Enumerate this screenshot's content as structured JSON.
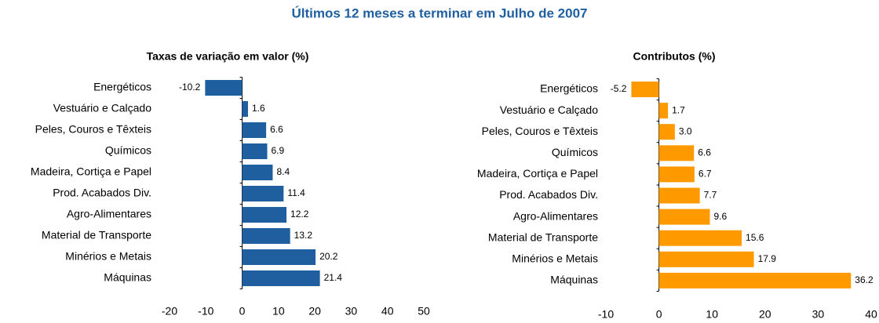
{
  "title": "Últimos 12 meses a terminar em Julho de 2007",
  "chart_data": [
    {
      "type": "bar",
      "orientation": "horizontal",
      "title": "Taxas de variação em valor (%)",
      "categories": [
        "Energéticos",
        "Vestuário e Calçado",
        "Peles, Couros e Têxteis",
        "Químicos",
        "Madeira, Cortiça e Papel",
        "Prod. Acabados Div.",
        "Agro-Alimentares",
        "Material de Transporte",
        "Minérios e Metais",
        "Máquinas"
      ],
      "values": [
        -10.2,
        1.6,
        6.6,
        6.9,
        8.4,
        11.4,
        12.2,
        13.2,
        20.2,
        21.4
      ],
      "value_labels": [
        "-10.2",
        "1.6",
        "6.6",
        "6.9",
        "8.4",
        "11.4",
        "12.2",
        "13.2",
        "20.2",
        "21.4"
      ],
      "color": "#1f5fa0",
      "xlim": [
        -20,
        50
      ],
      "xticks": [
        -20,
        -10,
        0,
        10,
        20,
        30,
        40,
        50
      ]
    },
    {
      "type": "bar",
      "orientation": "horizontal",
      "title": "Contributos (%)",
      "categories": [
        "Energéticos",
        "Vestuário e Calçado",
        "Peles, Couros e Têxteis",
        "Químicos",
        "Madeira, Cortiça e Papel",
        "Prod. Acabados Div.",
        "Agro-Alimentares",
        "Material de Transporte",
        "Minérios e Metais",
        "Máquinas"
      ],
      "values": [
        -5.2,
        1.7,
        3.0,
        6.6,
        6.7,
        7.7,
        9.6,
        15.6,
        17.9,
        36.2
      ],
      "value_labels": [
        "-5.2",
        "1.7",
        "3.0",
        "6.6",
        "6.7",
        "7.7",
        "9.6",
        "15.6",
        "17.9",
        "36.2"
      ],
      "color": "#ff9900",
      "xlim": [
        -10,
        40
      ],
      "xticks": [
        -10,
        0,
        10,
        20,
        30,
        40
      ]
    }
  ]
}
